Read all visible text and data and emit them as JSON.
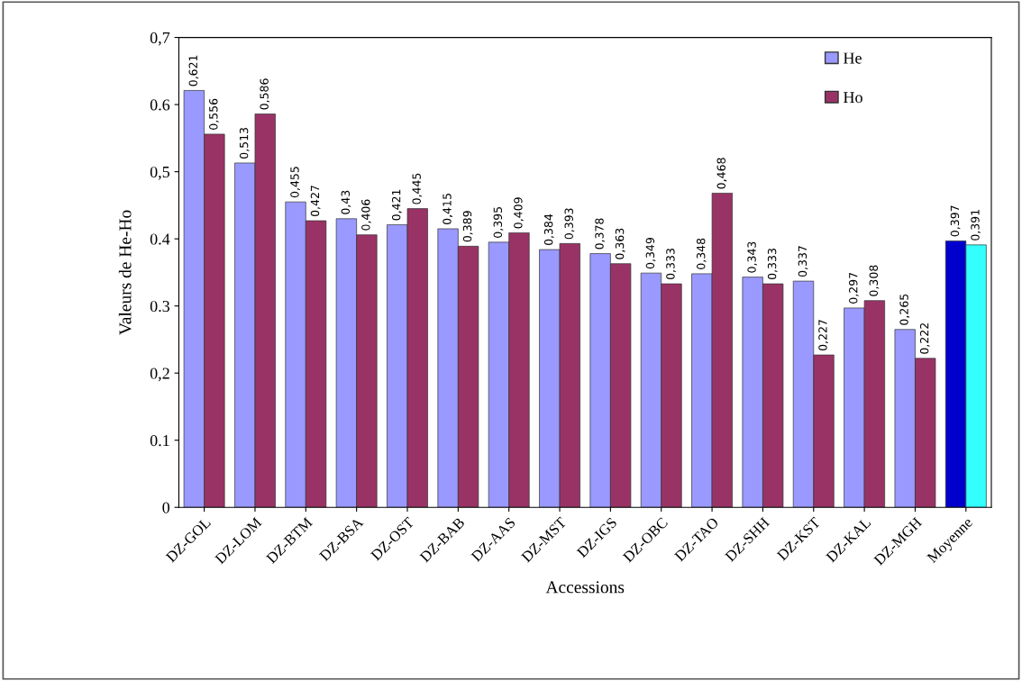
{
  "chart_data": {
    "type": "bar",
    "xlabel": "Accessions",
    "ylabel": "Valeurs de He-Ho",
    "categories": [
      "DZ-GOL",
      "DZ-LOM",
      "DZ-BTM",
      "DZ-BSA",
      "DZ-OST",
      "DZ-BAB",
      "DZ-AAS",
      "DZ-MST",
      "DZ-IGS",
      "DZ-OBC",
      "DZ-TAO",
      "DZ-SHH",
      "DZ-KST",
      "DZ-KAL",
      "DZ-MGH",
      "Moyenne"
    ],
    "series": [
      {
        "name": "He",
        "color": "#9999ff",
        "colors": [
          "#9999ff",
          "#9999ff",
          "#9999ff",
          "#9999ff",
          "#9999ff",
          "#9999ff",
          "#9999ff",
          "#9999ff",
          "#9999ff",
          "#9999ff",
          "#9999ff",
          "#9999ff",
          "#9999ff",
          "#9999ff",
          "#9999ff",
          "#0000cc"
        ],
        "values": [
          0.621,
          0.513,
          0.455,
          0.43,
          0.421,
          0.415,
          0.395,
          0.384,
          0.378,
          0.349,
          0.348,
          0.343,
          0.337,
          0.297,
          0.265,
          0.397
        ],
        "value_labels": [
          "0,621",
          "0,513",
          "0,455",
          "0,43",
          "0,421",
          "0,415",
          "0,395",
          "0,384",
          "0,378",
          "0,349",
          "0,348",
          "0,343",
          "0,337",
          "0,297",
          "0,265",
          "0,397"
        ]
      },
      {
        "name": "Ho",
        "color": "#993366",
        "colors": [
          "#993366",
          "#993366",
          "#993366",
          "#993366",
          "#993366",
          "#993366",
          "#993366",
          "#993366",
          "#993366",
          "#993366",
          "#993366",
          "#993366",
          "#993366",
          "#993366",
          "#993366",
          "#33ffff"
        ],
        "values": [
          0.556,
          0.586,
          0.427,
          0.406,
          0.445,
          0.389,
          0.409,
          0.393,
          0.363,
          0.333,
          0.468,
          0.333,
          0.227,
          0.308,
          0.222,
          0.391
        ],
        "value_labels": [
          "0,556",
          "0,586",
          "0,427",
          "0,406",
          "0,445",
          "0,389",
          "0,409",
          "0,393",
          "0,363",
          "0,333",
          "0,468",
          "0,333",
          "0,227",
          "0,308",
          "0,222",
          "0,391"
        ]
      }
    ],
    "ylim": [
      0,
      0.7
    ],
    "yticks": [
      0,
      {
        "value": 0.1,
        "label": "0.1"
      },
      {
        "value": 0.2,
        "label": "0,2"
      },
      {
        "value": 0.3,
        "label": "0.3"
      },
      {
        "value": 0.4,
        "label": "0.4"
      },
      {
        "value": 0.5,
        "label": "0,5"
      },
      {
        "value": 0.6,
        "label": "0.6"
      },
      {
        "value": 0.7,
        "label": "0,7"
      }
    ],
    "legend": "top right",
    "grid": false
  }
}
